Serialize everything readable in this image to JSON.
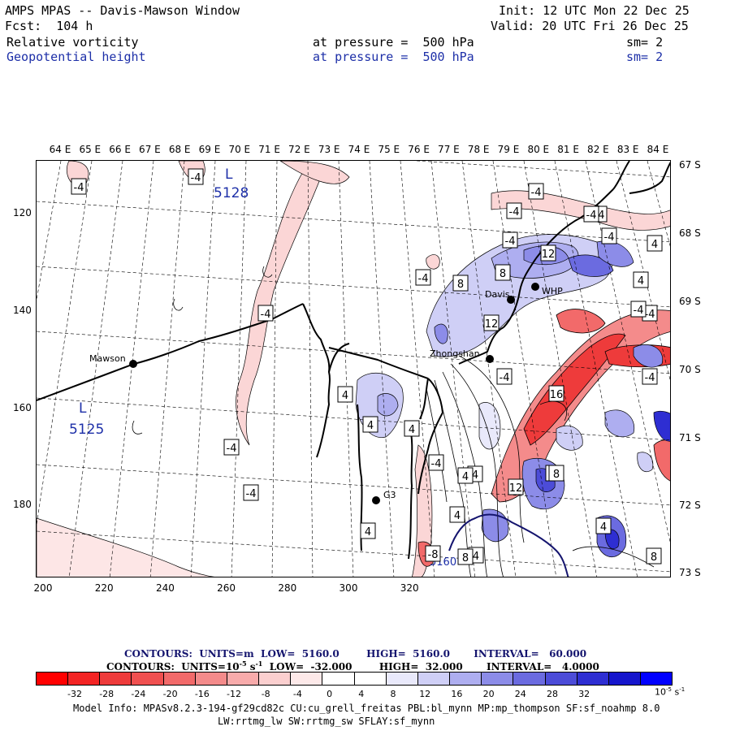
{
  "header": {
    "title": "AMPS MPAS -- Davis-Mawson Window",
    "fcst": "Fcst:  104 h",
    "init": "Init: 12 UTC Mon 22 Dec 25",
    "valid": "Valid: 20 UTC Fri 26 Dec 25",
    "field1": {
      "name": "Relative vorticity",
      "level": "at pressure =  500 hPa",
      "sm": "sm= 2"
    },
    "field2": {
      "name": "Geopotential height",
      "level": "at pressure =  500 hPa",
      "sm": "sm= 2"
    }
  },
  "map": {
    "lon_labels": [
      "64 E",
      "65 E",
      "66 E",
      "67 E",
      "68 E",
      "69 E",
      "70 E",
      "71 E",
      "72 E",
      "73 E",
      "74 E",
      "75 E",
      "76 E",
      "77 E",
      "78 E",
      "79 E",
      "80 E",
      "81 E",
      "82 E",
      "83 E",
      "84 E"
    ],
    "lat_labels": [
      "67 S",
      "68 S",
      "69 S",
      "70 S",
      "71 S",
      "72 S",
      "73 S"
    ],
    "y_ticks": [
      "120",
      "140",
      "160",
      "180"
    ],
    "x_ticks": [
      "200",
      "220",
      "240",
      "260",
      "280",
      "300",
      "320"
    ],
    "stations": [
      {
        "name": "Mawson"
      },
      {
        "name": "Davis"
      },
      {
        "name": "WHP"
      },
      {
        "name": "Zhongshan"
      },
      {
        "name": "G3"
      }
    ],
    "lows": [
      {
        "symbol": "L",
        "value": "5128"
      },
      {
        "symbol": "L",
        "value": "5125"
      }
    ],
    "height_contour_label": "5160",
    "contour_box_labels": [
      "-4",
      "-4",
      "-4",
      "-4",
      "-4",
      "-4",
      "-4",
      "-4",
      "-4",
      "-4",
      "-4",
      "-4",
      "-4",
      "-4",
      "-4",
      "-4",
      "-4",
      "4",
      "4",
      "4",
      "4",
      "4",
      "4",
      "4",
      "4",
      "4",
      "4",
      "4",
      "4",
      "8",
      "8",
      "8",
      "8",
      "8",
      "12",
      "12",
      "12",
      "16",
      "-8",
      "-8",
      "-8"
    ],
    "colors": {
      "vorticity_pos": "#3a3ad0",
      "vorticity_neg": "#e03030",
      "height_contour": "#14146e"
    }
  },
  "contours": {
    "line1": {
      "label": "CONTOURS:  UNITS=m",
      "low": "LOW=  5160.0",
      "high": "HIGH=  5160.0",
      "interval": "INTERVAL=   60.000"
    },
    "line2": {
      "label": "CONTOURS:  UNITS=10",
      "exp": "-5",
      "unit": "s",
      "uexp": "-1",
      "low": "LOW=  -32.000",
      "high": "HIGH=  32.000",
      "interval": "INTERVAL=   4.0000"
    }
  },
  "colorbar": {
    "colors": [
      "#ff0000",
      "#f32424",
      "#ee3b3b",
      "#f05050",
      "#f26a6a",
      "#f48b8b",
      "#f8abab",
      "#fbcfcf",
      "#fde9e9",
      "#ffffff",
      "#ffffff",
      "#e9e9fb",
      "#cfcff6",
      "#aeaef0",
      "#8c8ce8",
      "#6b6be0",
      "#4c4cd8",
      "#2e2ed2",
      "#1515cc",
      "#0000ff"
    ],
    "labels": [
      "-32",
      "-28",
      "-24",
      "-20",
      "-16",
      "-12",
      "-8",
      "-4",
      "0",
      "4",
      "8",
      "12",
      "16",
      "20",
      "24",
      "28",
      "32"
    ],
    "unit_base": "10",
    "unit_exp": "-5",
    "unit_s": "s",
    "unit_sexp": "-1"
  },
  "model_info": {
    "line1": "Model Info: MPASv8.2.3-194-gf29cd82c CU:cu_grell_freitas PBL:bl_mynn MP:mp_thompson SF:sf_noahmp 8.0",
    "line2": "LW:rrtmg_lw SW:rrtmg_sw SFLAY:sf_mynn"
  }
}
